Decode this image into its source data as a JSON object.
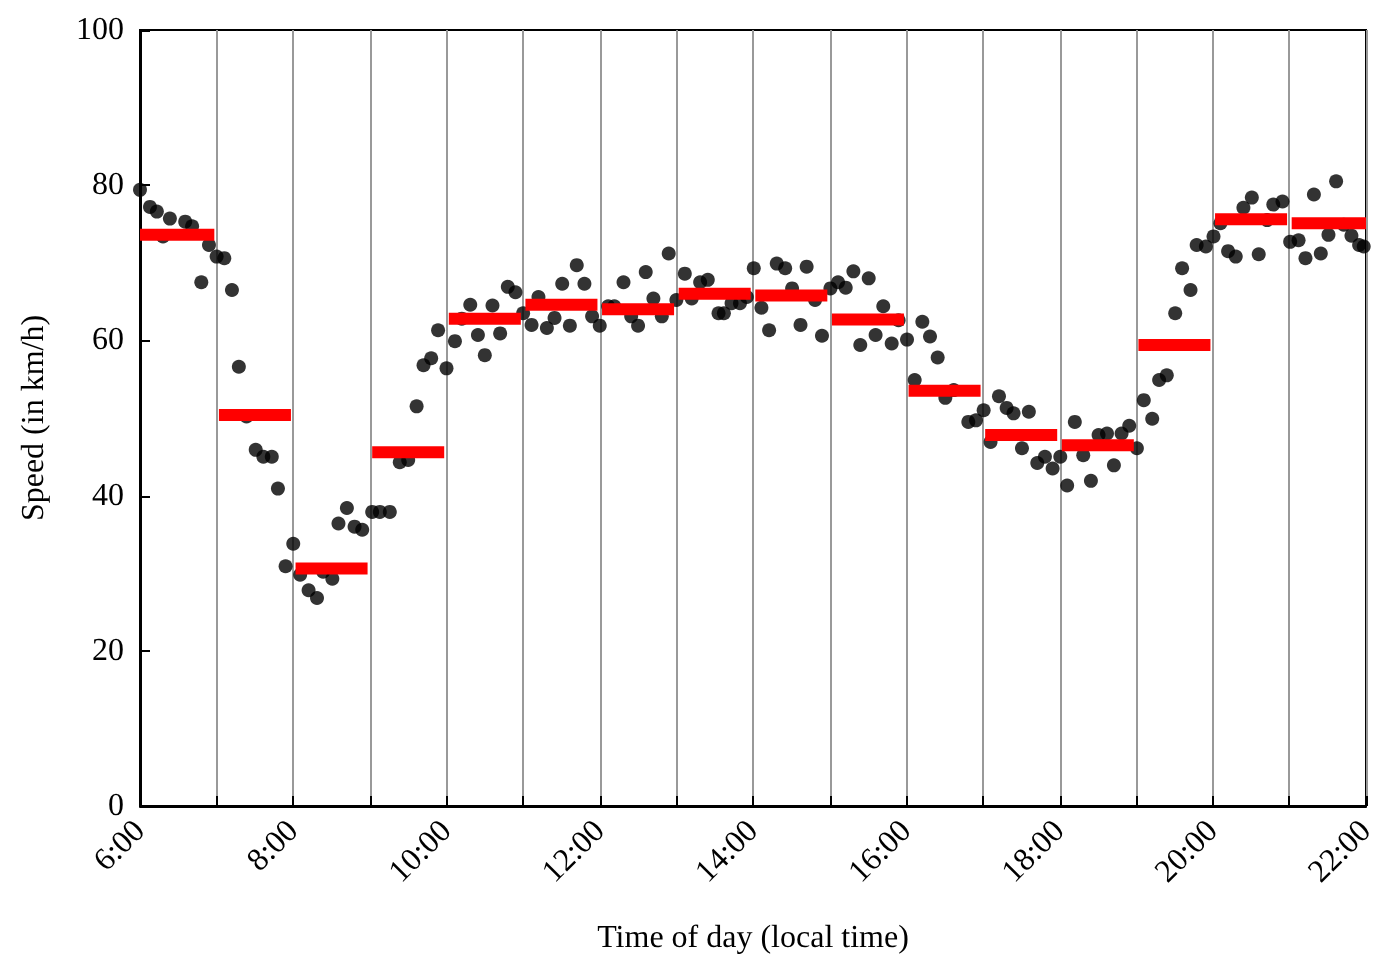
{
  "chart_data": {
    "type": "scatter",
    "xlabel": "Time of day (local time)",
    "ylabel": "Speed (in km/h)",
    "xlim": [
      6,
      22
    ],
    "ylim": [
      0,
      100
    ],
    "xticks": [
      {
        "value": 6,
        "label": "6:00"
      },
      {
        "value": 7,
        "label": null
      },
      {
        "value": 8,
        "label": "8:00"
      },
      {
        "value": 9,
        "label": null
      },
      {
        "value": 10,
        "label": "10:00"
      },
      {
        "value": 11,
        "label": null
      },
      {
        "value": 12,
        "label": "12:00"
      },
      {
        "value": 13,
        "label": null
      },
      {
        "value": 14,
        "label": "14:00"
      },
      {
        "value": 15,
        "label": null
      },
      {
        "value": 16,
        "label": "16:00"
      },
      {
        "value": 17,
        "label": null
      },
      {
        "value": 18,
        "label": "18:00"
      },
      {
        "value": 19,
        "label": null
      },
      {
        "value": 20,
        "label": "20:00"
      },
      {
        "value": 21,
        "label": null
      },
      {
        "value": 22,
        "label": "22:00"
      }
    ],
    "yticks": [
      0,
      20,
      40,
      60,
      80,
      100
    ],
    "grid": "x",
    "series": [
      {
        "color": "#000000",
        "marker": "circle",
        "x": [
          6.0,
          6.13,
          6.22,
          6.3,
          6.39,
          6.59,
          6.68,
          6.8,
          6.9,
          7.0,
          7.1,
          7.2,
          7.29,
          7.39,
          7.51,
          7.61,
          7.72,
          7.8,
          7.9,
          8.0,
          8.09,
          8.2,
          8.31,
          8.39,
          8.51,
          8.59,
          8.7,
          8.8,
          8.9,
          9.03,
          9.13,
          9.26,
          9.39,
          9.5,
          9.61,
          9.7,
          9.8,
          9.89,
          10.0,
          10.11,
          10.2,
          10.31,
          10.41,
          10.5,
          10.6,
          10.7,
          10.8,
          10.9,
          11.0,
          11.11,
          11.2,
          11.31,
          11.41,
          11.51,
          11.61,
          11.7,
          11.8,
          11.9,
          12.0,
          12.11,
          12.19,
          12.31,
          12.41,
          12.5,
          12.6,
          12.7,
          12.81,
          12.9,
          13.0,
          13.11,
          13.2,
          13.31,
          13.41,
          13.55,
          13.62,
          13.72,
          13.83,
          13.92,
          14.01,
          14.11,
          14.21,
          14.31,
          14.42,
          14.51,
          14.62,
          14.7,
          14.81,
          14.9,
          15.01,
          15.11,
          15.21,
          15.31,
          15.4,
          15.51,
          15.6,
          15.7,
          15.81,
          15.9,
          16.01,
          16.11,
          16.21,
          16.31,
          16.41,
          16.51,
          16.62,
          16.81,
          16.91,
          17.01,
          17.1,
          17.21,
          17.31,
          17.4,
          17.51,
          17.6,
          17.71,
          17.81,
          17.91,
          18.01,
          18.1,
          18.2,
          18.31,
          18.41,
          18.51,
          18.62,
          18.71,
          18.81,
          18.91,
          19.01,
          19.1,
          19.21,
          19.3,
          19.4,
          19.51,
          19.6,
          19.71,
          19.79,
          19.91,
          20.01,
          20.1,
          20.2,
          20.3,
          20.4,
          20.51,
          20.6,
          20.71,
          20.79,
          20.91,
          21.01,
          21.12,
          21.21,
          21.32,
          21.41,
          21.51,
          21.61,
          21.71,
          21.81,
          21.91,
          21.97
        ],
        "values": [
          79.4,
          77.2,
          76.6,
          73.4,
          75.7,
          75.3,
          74.7,
          67.5,
          72.3,
          70.8,
          70.6,
          66.5,
          56.6,
          50.2,
          45.9,
          45.0,
          45.0,
          40.9,
          30.9,
          33.8,
          29.8,
          27.8,
          26.8,
          30.2,
          29.3,
          36.4,
          38.4,
          36.0,
          35.6,
          37.9,
          37.9,
          37.9,
          44.3,
          44.6,
          51.5,
          56.8,
          57.7,
          61.3,
          56.4,
          59.9,
          62.8,
          64.6,
          60.7,
          58.1,
          64.5,
          60.9,
          66.9,
          66.2,
          63.5,
          62.0,
          65.6,
          61.6,
          62.9,
          67.3,
          61.9,
          69.7,
          67.3,
          63.1,
          61.9,
          64.4,
          64.4,
          67.5,
          63.1,
          61.9,
          68.8,
          65.4,
          63.1,
          71.2,
          65.2,
          68.6,
          65.4,
          67.5,
          67.8,
          63.5,
          63.5,
          64.8,
          64.8,
          65.6,
          69.3,
          64.2,
          61.3,
          69.9,
          69.3,
          66.7,
          62.0,
          69.5,
          65.2,
          60.6,
          66.7,
          67.5,
          66.8,
          68.9,
          59.4,
          68.0,
          60.7,
          64.4,
          59.6,
          62.6,
          60.1,
          54.9,
          62.4,
          60.5,
          57.8,
          52.6,
          53.6,
          49.5,
          49.7,
          51.0,
          46.9,
          52.8,
          51.3,
          50.6,
          46.1,
          50.8,
          44.2,
          45.0,
          43.5,
          45.0,
          41.3,
          49.5,
          45.2,
          41.9,
          47.8,
          48.0,
          43.9,
          48.0,
          49.0,
          46.1,
          52.3,
          49.9,
          54.9,
          55.5,
          63.5,
          69.3,
          66.5,
          72.3,
          72.1,
          73.4,
          75.1,
          71.5,
          70.8,
          77.1,
          78.4,
          71.1,
          75.5,
          77.5,
          77.9,
          72.7,
          72.9,
          70.6,
          78.8,
          71.2,
          73.6,
          80.5,
          74.9,
          73.5,
          72.3,
          72.1
        ]
      },
      {
        "type": "line",
        "color": "#ff0000",
        "marker": "none",
        "line_style": "solid",
        "x": [
          6,
          6.97
        ],
        "values": [
          73.6,
          73.6
        ]
      },
      {
        "type": "line",
        "color": "#ff0000",
        "marker": "none",
        "line_style": "solid",
        "x": [
          7.03,
          7.97
        ],
        "values": [
          50.4,
          50.4
        ]
      },
      {
        "type": "line",
        "color": "#ff0000",
        "marker": "none",
        "line_style": "solid",
        "x": [
          8.03,
          8.97
        ],
        "values": [
          30.6,
          30.6
        ]
      },
      {
        "type": "line",
        "color": "#ff0000",
        "marker": "none",
        "line_style": "solid",
        "x": [
          9.03,
          9.97
        ],
        "values": [
          45.6,
          45.6
        ]
      },
      {
        "type": "line",
        "color": "#ff0000",
        "marker": "none",
        "line_style": "solid",
        "x": [
          10.03,
          10.97
        ],
        "values": [
          62.8,
          62.8
        ]
      },
      {
        "type": "line",
        "color": "#ff0000",
        "marker": "none",
        "line_style": "solid",
        "x": [
          11.03,
          11.97
        ],
        "values": [
          64.6,
          64.6
        ]
      },
      {
        "type": "line",
        "color": "#ff0000",
        "marker": "none",
        "line_style": "solid",
        "x": [
          12.03,
          12.97
        ],
        "values": [
          64.0,
          64.0
        ]
      },
      {
        "type": "line",
        "color": "#ff0000",
        "marker": "none",
        "line_style": "solid",
        "x": [
          13.03,
          13.97
        ],
        "values": [
          66.0,
          66.0
        ]
      },
      {
        "type": "line",
        "color": "#ff0000",
        "marker": "none",
        "line_style": "solid",
        "x": [
          14.03,
          14.97
        ],
        "values": [
          65.8,
          65.8
        ]
      },
      {
        "type": "line",
        "color": "#ff0000",
        "marker": "none",
        "line_style": "solid",
        "x": [
          15.03,
          15.97
        ],
        "values": [
          62.7,
          62.7
        ]
      },
      {
        "type": "line",
        "color": "#ff0000",
        "marker": "none",
        "line_style": "solid",
        "x": [
          16.03,
          16.97
        ],
        "values": [
          53.5,
          53.5
        ]
      },
      {
        "type": "line",
        "color": "#ff0000",
        "marker": "none",
        "line_style": "solid",
        "x": [
          17.03,
          17.97
        ],
        "values": [
          47.8,
          47.8
        ]
      },
      {
        "type": "line",
        "color": "#ff0000",
        "marker": "none",
        "line_style": "solid",
        "x": [
          18.03,
          18.97
        ],
        "values": [
          46.5,
          46.5
        ]
      },
      {
        "type": "line",
        "color": "#ff0000",
        "marker": "none",
        "line_style": "solid",
        "x": [
          19.03,
          19.97
        ],
        "values": [
          59.4,
          59.4
        ]
      },
      {
        "type": "line",
        "color": "#ff0000",
        "marker": "none",
        "line_style": "solid",
        "x": [
          20.03,
          20.97
        ],
        "values": [
          75.6,
          75.6
        ]
      },
      {
        "type": "line",
        "color": "#ff0000",
        "marker": "none",
        "line_style": "solid",
        "x": [
          21.03,
          22
        ],
        "values": [
          75.1,
          75.1
        ]
      }
    ]
  }
}
